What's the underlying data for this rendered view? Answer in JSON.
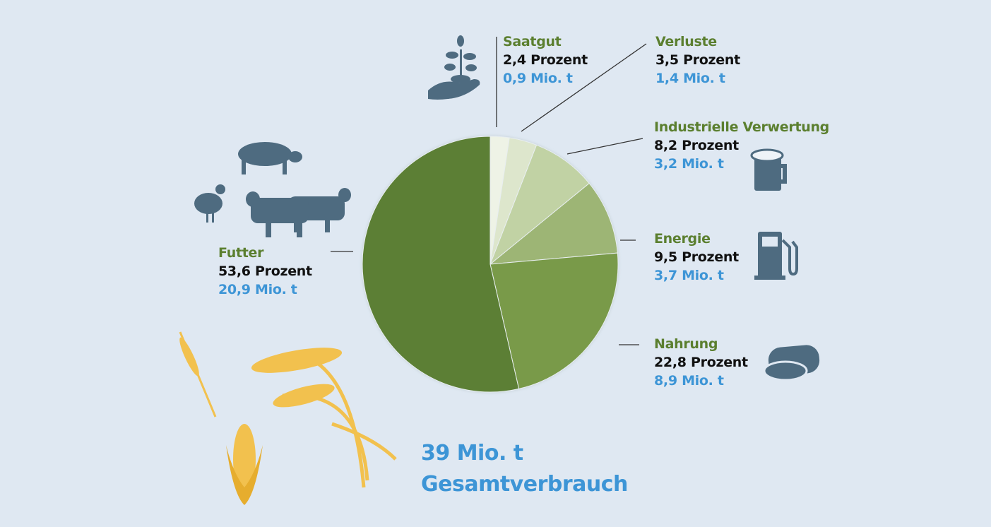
{
  "chart_data": {
    "type": "pie",
    "start": "top, clockwise",
    "slices": [
      {
        "label": "Saatgut",
        "percent_label": "2,4 Prozent",
        "amount_label": "0,9 Mio. t",
        "value": 2.4,
        "amount": 0.9,
        "color": "#eef3e6",
        "icon": "seedling-in-hand-icon"
      },
      {
        "label": "Verluste",
        "percent_label": "3,5 Prozent",
        "amount_label": "1,4 Mio. t",
        "value": 3.5,
        "amount": 1.4,
        "color": "#dde6cc",
        "icon": ""
      },
      {
        "label": "Industrielle Verwertung",
        "percent_label": "8,2 Prozent",
        "amount_label": "3,2 Mio. t",
        "value": 8.2,
        "amount": 3.2,
        "color": "#c1d2a4",
        "icon": "beer-mug-icon"
      },
      {
        "label": "Energie",
        "percent_label": "9,5 Prozent",
        "amount_label": "3,7 Mio. t",
        "value": 9.5,
        "amount": 3.7,
        "color": "#9db574",
        "icon": "fuel-pump-icon"
      },
      {
        "label": "Nahrung",
        "percent_label": "22,8 Prozent",
        "amount_label": "8,9 Mio. t",
        "value": 22.8,
        "amount": 8.9,
        "color": "#799a48",
        "icon": "bread-icon"
      },
      {
        "label": "Futter",
        "percent_label": "53,6 Prozent",
        "amount_label": "20,9 Mio. t",
        "value": 53.6,
        "amount": 20.9,
        "color": "#5b7f34",
        "icon": "livestock-icon"
      }
    ],
    "total": {
      "value_label": "39 Mio. t",
      "caption": "Gesamtverbrauch",
      "amount": 39
    }
  },
  "colors": {
    "background": "#dfe8f2",
    "label_green": "#5b7f2f",
    "amount_blue": "#3d95d6",
    "icon": "#4e6b80",
    "grain": "#f2c14e"
  }
}
